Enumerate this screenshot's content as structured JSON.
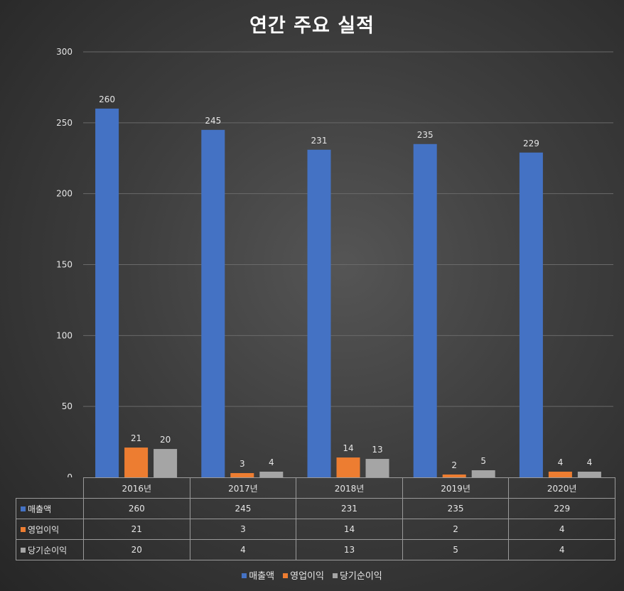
{
  "chart_data": {
    "type": "bar",
    "title": "연간 주요 실적",
    "categories": [
      "2016년",
      "2017년",
      "2018년",
      "2019년",
      "2020년"
    ],
    "series": [
      {
        "name": "매출액",
        "values": [
          260,
          245,
          231,
          235,
          229
        ],
        "color": "#4472c4"
      },
      {
        "name": "영업이익",
        "values": [
          21,
          3,
          14,
          2,
          4
        ],
        "color": "#ed7d31"
      },
      {
        "name": "당기순이익",
        "values": [
          20,
          4,
          13,
          5,
          4
        ],
        "color": "#a5a5a5"
      }
    ],
    "yticks": [
      "0",
      "50",
      "100",
      "150",
      "200",
      "250",
      "300"
    ],
    "ylim": [
      0,
      300
    ],
    "grid": true,
    "legend": "bottom",
    "data_table": true
  }
}
